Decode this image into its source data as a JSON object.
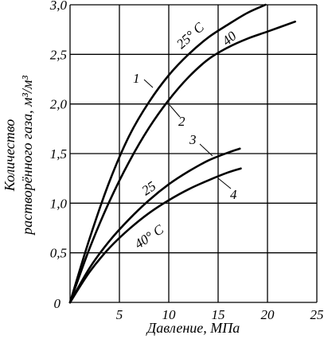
{
  "chart_data": {
    "type": "line",
    "xlabel": "Давление, МПа",
    "ylabel_line1": "Количество",
    "ylabel_line2": "растворённого газа, м³/м³",
    "xlim": [
      0,
      25
    ],
    "ylim": [
      0,
      3.0
    ],
    "grid": true,
    "x_ticks": [
      "0",
      "5",
      "10",
      "15",
      "20",
      "25"
    ],
    "y_ticks": [
      "0,5",
      "1,0",
      "1,5",
      "2,0",
      "2,5",
      "3,0"
    ],
    "series": [
      {
        "name": "1",
        "temperature_label": "25° C",
        "x": [
          0,
          2,
          4,
          6,
          8,
          10,
          12,
          14,
          16,
          18,
          19.8
        ],
        "y": [
          0,
          0.65,
          1.22,
          1.68,
          2.02,
          2.29,
          2.5,
          2.67,
          2.8,
          2.92,
          3.0
        ]
      },
      {
        "name": "2",
        "temperature_label": "40",
        "x": [
          0,
          2,
          4,
          6,
          8,
          10,
          12,
          14,
          16,
          18,
          20,
          22.8
        ],
        "y": [
          0,
          0.55,
          1.02,
          1.42,
          1.76,
          2.04,
          2.27,
          2.45,
          2.57,
          2.66,
          2.73,
          2.83
        ]
      },
      {
        "name": "3",
        "temperature_label": "25",
        "x": [
          0,
          2,
          4,
          6,
          8,
          10,
          12,
          14,
          16,
          17.2
        ],
        "y": [
          0,
          0.35,
          0.62,
          0.84,
          1.03,
          1.19,
          1.32,
          1.43,
          1.51,
          1.55
        ]
      },
      {
        "name": "4",
        "temperature_label": "40° C",
        "x": [
          0,
          2,
          4,
          6,
          8,
          10,
          12,
          14,
          16,
          17.3
        ],
        "y": [
          0,
          0.31,
          0.55,
          0.74,
          0.9,
          1.03,
          1.14,
          1.23,
          1.31,
          1.35
        ]
      }
    ]
  }
}
